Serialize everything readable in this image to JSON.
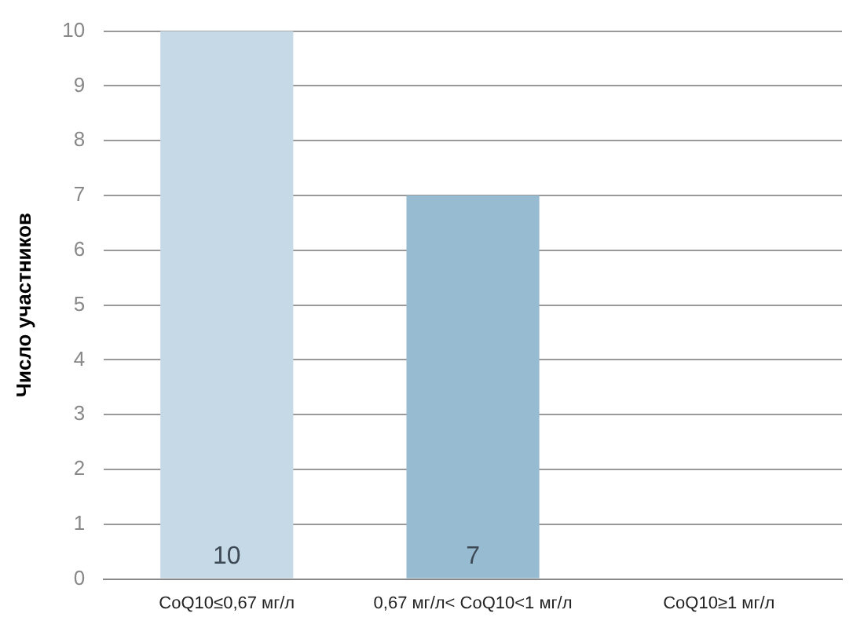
{
  "chart_data": {
    "type": "bar",
    "ylabel": "Число участников",
    "categories": [
      "CoQ10≤0,67 мг/л",
      "0,67 мг/л< CoQ10<1 мг/л",
      "CoQ10≥1 мг/л"
    ],
    "values": [
      10,
      7,
      0
    ],
    "colors": [
      "#c6d9e6",
      "#97bcd2",
      "#97bcd2"
    ],
    "value_labels": [
      "10",
      "7",
      null
    ],
    "ylim": [
      0,
      10
    ],
    "yticks": [
      0,
      1,
      2,
      3,
      4,
      5,
      6,
      7,
      8,
      9,
      10
    ],
    "grid": "y",
    "legend": false
  }
}
